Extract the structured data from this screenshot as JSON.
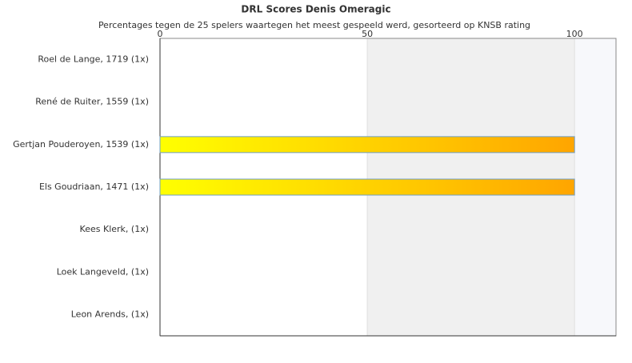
{
  "chart_data": {
    "type": "hbar",
    "title": "DRL Scores Denis Omeragic",
    "subtitle": "Percentages tegen de 25 spelers waartegen het meest gespeeld werd, gesorteerd op KNSB rating",
    "categories": [
      "Roel de Lange, 1719 (1x)",
      "René de Ruiter, 1559 (1x)",
      "Gertjan Pouderoyen, 1539 (1x)",
      "Els Goudriaan, 1471 (1x)",
      "Kees Klerk,  (1x)",
      "Loek Langeveld,  (1x)",
      "Leon Arends,  (1x)"
    ],
    "values": [
      0,
      0,
      100,
      100,
      0,
      0,
      0
    ],
    "gradient": [
      "#ffff00",
      "#ffa500"
    ],
    "bar_border": "#6f9fc6",
    "band_colors": [
      "#ffffff",
      "#f0f0f0",
      "#f7f8fb"
    ],
    "xlim": [
      0,
      110
    ],
    "xticks": [
      0,
      50,
      100
    ],
    "grid": true
  }
}
